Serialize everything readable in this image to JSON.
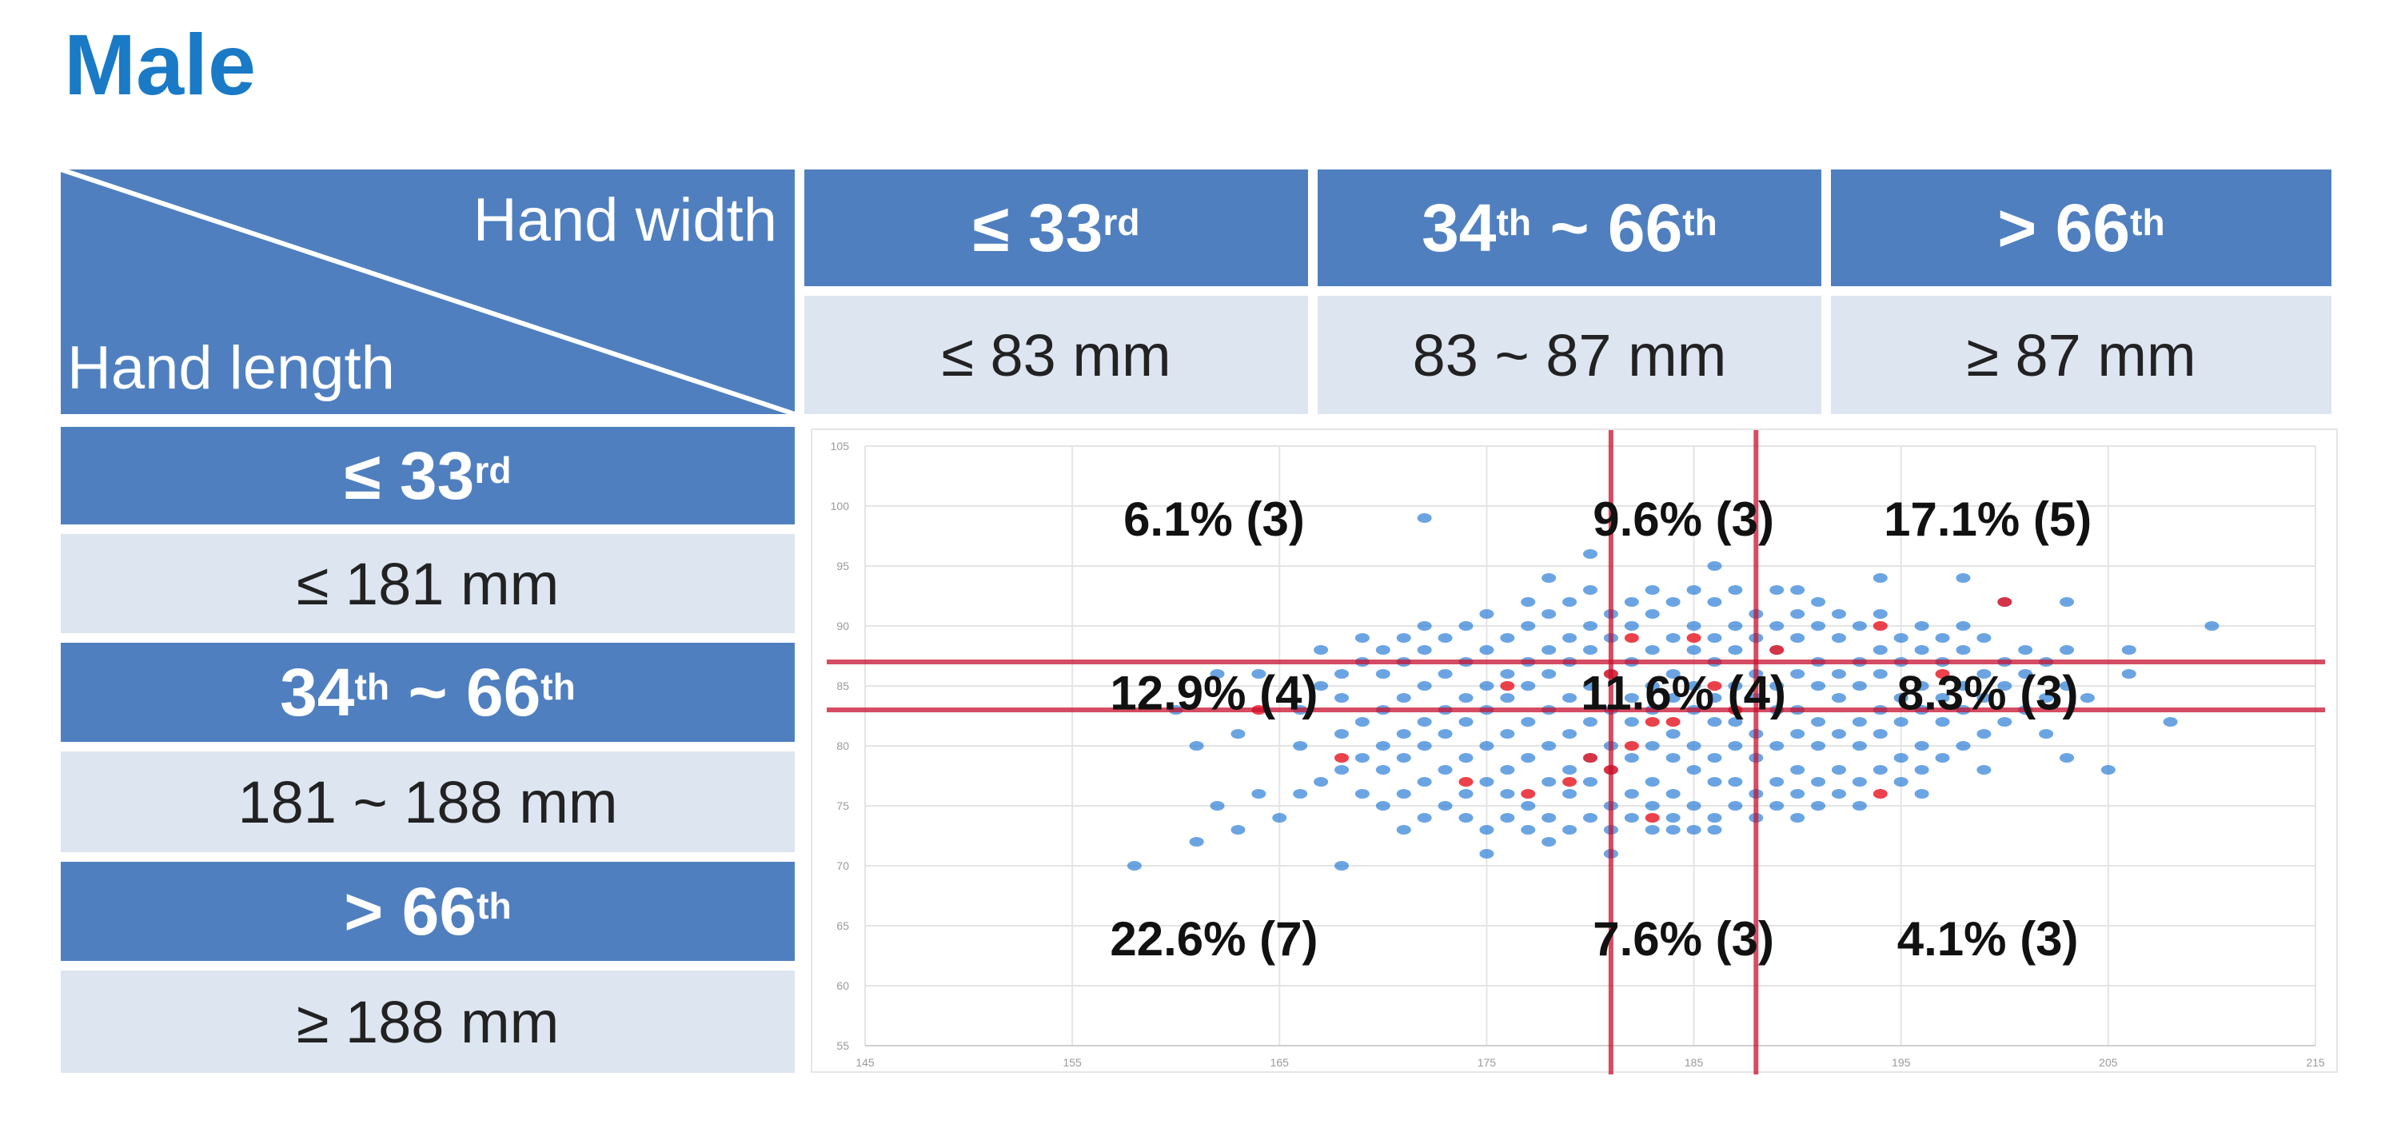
{
  "title": "Male",
  "corner": {
    "top_label": "Hand width",
    "bottom_label": "Hand length"
  },
  "width_columns": [
    {
      "pct": "≤ 33",
      "sup": "rd",
      "mm": "≤ 83 mm"
    },
    {
      "pct_a": "34",
      "sup_a": "th",
      "tilde": " ~ ",
      "pct_b": "66",
      "sup_b": "th",
      "mm": "83 ~ 87 mm"
    },
    {
      "pct": "> 66",
      "sup": "th",
      "mm": "≥ 87 mm"
    }
  ],
  "length_rows": [
    {
      "pct": "≤ 33",
      "sup": "rd",
      "mm": "≤ 181 mm"
    },
    {
      "pct_a": "34",
      "sup_a": "th",
      "tilde": " ~ ",
      "pct_b": "66",
      "sup_b": "th",
      "mm": "181 ~ 188 mm"
    },
    {
      "pct": "> 66",
      "sup": "th",
      "mm": "≥ 188 mm"
    }
  ],
  "colors": {
    "header_dark": "#4f7fbf",
    "header_light": "#dde5f0",
    "title": "#1a7ac6",
    "cutoff_line": "#c8102e",
    "points": "#3a86d8",
    "highlight_points": "#e8202a"
  },
  "chart_data": {
    "type": "scatter",
    "x_axis": {
      "range": [
        145,
        215
      ],
      "ticks": [
        "145",
        "155",
        "165",
        "175",
        "185",
        "195",
        "205",
        "215"
      ]
    },
    "y_axis": {
      "range": [
        55,
        105
      ],
      "ticks": [
        "55",
        "60",
        "65",
        "70",
        "75",
        "80",
        "85",
        "90",
        "95",
        "100",
        "105"
      ]
    },
    "grid": true,
    "cutoff_lines": {
      "vertical": [
        181,
        188
      ],
      "horizontal": [
        83,
        87
      ]
    },
    "cell_annotations": [
      [
        "6.1% (3)",
        "9.6% (3)",
        "17.1% (5)"
      ],
      [
        "12.9% (4)",
        "11.6% (4)",
        "8.3% (3)"
      ],
      [
        "22.6% (7)",
        "7.6% (3)",
        "4.1% (3)"
      ]
    ],
    "points": [
      [
        158,
        70
      ],
      [
        161,
        72
      ],
      [
        163,
        73
      ],
      [
        164,
        76
      ],
      [
        162,
        75
      ],
      [
        166,
        76
      ],
      [
        165,
        74
      ],
      [
        168,
        70
      ],
      [
        171,
        73
      ],
      [
        175,
        71
      ],
      [
        178,
        72
      ],
      [
        181,
        71
      ],
      [
        184,
        73
      ],
      [
        186,
        73
      ],
      [
        190,
        74
      ],
      [
        193,
        75
      ],
      [
        196,
        76
      ],
      [
        199,
        78
      ],
      [
        203,
        79
      ],
      [
        210,
        90
      ],
      [
        206,
        88
      ],
      [
        203,
        92
      ],
      [
        200,
        92
      ],
      [
        198,
        94
      ],
      [
        194,
        94
      ],
      [
        190,
        93
      ],
      [
        186,
        95
      ],
      [
        180,
        96
      ],
      [
        178,
        94
      ],
      [
        172,
        99
      ],
      [
        169,
        89
      ],
      [
        167,
        88
      ],
      [
        164,
        86
      ],
      [
        162,
        86
      ],
      [
        160,
        83
      ],
      [
        161,
        80
      ],
      [
        163,
        81
      ],
      [
        206,
        86
      ],
      [
        208,
        82
      ],
      [
        204,
        84
      ],
      [
        202,
        81
      ],
      [
        205,
        78
      ],
      [
        166,
        80
      ],
      [
        166,
        83
      ],
      [
        167,
        77
      ],
      [
        167,
        85
      ],
      [
        168,
        78
      ],
      [
        168,
        81
      ],
      [
        168,
        84
      ],
      [
        168,
        86
      ],
      [
        169,
        76
      ],
      [
        169,
        79
      ],
      [
        169,
        82
      ],
      [
        169,
        87
      ],
      [
        170,
        75
      ],
      [
        170,
        78
      ],
      [
        170,
        80
      ],
      [
        170,
        83
      ],
      [
        170,
        86
      ],
      [
        170,
        88
      ],
      [
        171,
        76
      ],
      [
        171,
        79
      ],
      [
        171,
        81
      ],
      [
        171,
        84
      ],
      [
        171,
        87
      ],
      [
        171,
        89
      ],
      [
        172,
        74
      ],
      [
        172,
        77
      ],
      [
        172,
        80
      ],
      [
        172,
        82
      ],
      [
        172,
        85
      ],
      [
        172,
        88
      ],
      [
        172,
        90
      ],
      [
        173,
        75
      ],
      [
        173,
        78
      ],
      [
        173,
        81
      ],
      [
        173,
        83
      ],
      [
        173,
        86
      ],
      [
        173,
        89
      ],
      [
        174,
        74
      ],
      [
        174,
        76
      ],
      [
        174,
        79
      ],
      [
        174,
        82
      ],
      [
        174,
        84
      ],
      [
        174,
        87
      ],
      [
        174,
        90
      ],
      [
        175,
        73
      ],
      [
        175,
        77
      ],
      [
        175,
        80
      ],
      [
        175,
        83
      ],
      [
        175,
        85
      ],
      [
        175,
        88
      ],
      [
        175,
        91
      ],
      [
        176,
        74
      ],
      [
        176,
        76
      ],
      [
        176,
        78
      ],
      [
        176,
        81
      ],
      [
        176,
        84
      ],
      [
        176,
        86
      ],
      [
        176,
        89
      ],
      [
        177,
        73
      ],
      [
        177,
        75
      ],
      [
        177,
        79
      ],
      [
        177,
        82
      ],
      [
        177,
        85
      ],
      [
        177,
        87
      ],
      [
        177,
        90
      ],
      [
        177,
        92
      ],
      [
        178,
        74
      ],
      [
        178,
        77
      ],
      [
        178,
        80
      ],
      [
        178,
        83
      ],
      [
        178,
        86
      ],
      [
        178,
        88
      ],
      [
        178,
        91
      ],
      [
        179,
        73
      ],
      [
        179,
        76
      ],
      [
        179,
        78
      ],
      [
        179,
        81
      ],
      [
        179,
        84
      ],
      [
        179,
        87
      ],
      [
        179,
        89
      ],
      [
        179,
        92
      ],
      [
        180,
        74
      ],
      [
        180,
        77
      ],
      [
        180,
        79
      ],
      [
        180,
        82
      ],
      [
        180,
        85
      ],
      [
        180,
        88
      ],
      [
        180,
        90
      ],
      [
        180,
        93
      ],
      [
        181,
        73
      ],
      [
        181,
        75
      ],
      [
        181,
        78
      ],
      [
        181,
        80
      ],
      [
        181,
        83
      ],
      [
        181,
        86
      ],
      [
        181,
        89
      ],
      [
        181,
        91
      ],
      [
        182,
        74
      ],
      [
        182,
        76
      ],
      [
        182,
        79
      ],
      [
        182,
        82
      ],
      [
        182,
        84
      ],
      [
        182,
        87
      ],
      [
        182,
        90
      ],
      [
        182,
        92
      ],
      [
        183,
        73
      ],
      [
        183,
        75
      ],
      [
        183,
        77
      ],
      [
        183,
        80
      ],
      [
        183,
        83
      ],
      [
        183,
        85
      ],
      [
        183,
        88
      ],
      [
        183,
        91
      ],
      [
        183,
        93
      ],
      [
        184,
        74
      ],
      [
        184,
        76
      ],
      [
        184,
        79
      ],
      [
        184,
        81
      ],
      [
        184,
        84
      ],
      [
        184,
        86
      ],
      [
        184,
        89
      ],
      [
        184,
        92
      ],
      [
        185,
        73
      ],
      [
        185,
        75
      ],
      [
        185,
        78
      ],
      [
        185,
        80
      ],
      [
        185,
        83
      ],
      [
        185,
        85
      ],
      [
        185,
        88
      ],
      [
        185,
        90
      ],
      [
        185,
        93
      ],
      [
        186,
        74
      ],
      [
        186,
        77
      ],
      [
        186,
        79
      ],
      [
        186,
        82
      ],
      [
        186,
        84
      ],
      [
        186,
        87
      ],
      [
        186,
        89
      ],
      [
        186,
        92
      ],
      [
        187,
        75
      ],
      [
        187,
        77
      ],
      [
        187,
        80
      ],
      [
        187,
        82
      ],
      [
        187,
        85
      ],
      [
        187,
        88
      ],
      [
        187,
        90
      ],
      [
        187,
        93
      ],
      [
        188,
        74
      ],
      [
        188,
        76
      ],
      [
        188,
        79
      ],
      [
        188,
        81
      ],
      [
        188,
        84
      ],
      [
        188,
        86
      ],
      [
        188,
        89
      ],
      [
        188,
        91
      ],
      [
        189,
        75
      ],
      [
        189,
        77
      ],
      [
        189,
        80
      ],
      [
        189,
        83
      ],
      [
        189,
        85
      ],
      [
        189,
        88
      ],
      [
        189,
        90
      ],
      [
        189,
        93
      ],
      [
        190,
        76
      ],
      [
        190,
        78
      ],
      [
        190,
        81
      ],
      [
        190,
        83
      ],
      [
        190,
        86
      ],
      [
        190,
        89
      ],
      [
        190,
        91
      ],
      [
        191,
        75
      ],
      [
        191,
        77
      ],
      [
        191,
        80
      ],
      [
        191,
        82
      ],
      [
        191,
        85
      ],
      [
        191,
        87
      ],
      [
        191,
        90
      ],
      [
        191,
        92
      ],
      [
        192,
        76
      ],
      [
        192,
        78
      ],
      [
        192,
        81
      ],
      [
        192,
        84
      ],
      [
        192,
        86
      ],
      [
        192,
        89
      ],
      [
        192,
        91
      ],
      [
        193,
        77
      ],
      [
        193,
        80
      ],
      [
        193,
        82
      ],
      [
        193,
        85
      ],
      [
        193,
        87
      ],
      [
        193,
        90
      ],
      [
        194,
        78
      ],
      [
        194,
        81
      ],
      [
        194,
        83
      ],
      [
        194,
        86
      ],
      [
        194,
        88
      ],
      [
        194,
        91
      ],
      [
        195,
        77
      ],
      [
        195,
        79
      ],
      [
        195,
        82
      ],
      [
        195,
        84
      ],
      [
        195,
        87
      ],
      [
        195,
        89
      ],
      [
        196,
        78
      ],
      [
        196,
        80
      ],
      [
        196,
        83
      ],
      [
        196,
        85
      ],
      [
        196,
        88
      ],
      [
        196,
        90
      ],
      [
        197,
        79
      ],
      [
        197,
        82
      ],
      [
        197,
        84
      ],
      [
        197,
        87
      ],
      [
        197,
        89
      ],
      [
        198,
        80
      ],
      [
        198,
        83
      ],
      [
        198,
        85
      ],
      [
        198,
        88
      ],
      [
        198,
        90
      ],
      [
        199,
        81
      ],
      [
        199,
        84
      ],
      [
        199,
        86
      ],
      [
        199,
        89
      ],
      [
        200,
        82
      ],
      [
        200,
        85
      ],
      [
        200,
        87
      ],
      [
        201,
        83
      ],
      [
        201,
        86
      ],
      [
        201,
        88
      ],
      [
        202,
        84
      ],
      [
        202,
        87
      ],
      [
        203,
        85
      ],
      [
        203,
        88
      ]
    ],
    "highlight_points": [
      [
        168,
        79
      ],
      [
        174,
        77
      ],
      [
        177,
        76
      ],
      [
        179,
        77
      ],
      [
        180,
        79
      ],
      [
        181,
        78
      ],
      [
        181,
        86
      ],
      [
        182,
        89
      ],
      [
        182,
        80
      ],
      [
        183,
        74
      ],
      [
        183,
        82
      ],
      [
        184,
        82
      ],
      [
        185,
        89
      ],
      [
        186,
        85
      ],
      [
        187,
        83
      ],
      [
        189,
        88
      ],
      [
        194,
        76
      ],
      [
        194,
        90
      ],
      [
        197,
        86
      ],
      [
        200,
        92
      ],
      [
        164,
        83
      ],
      [
        176,
        85
      ]
    ]
  }
}
